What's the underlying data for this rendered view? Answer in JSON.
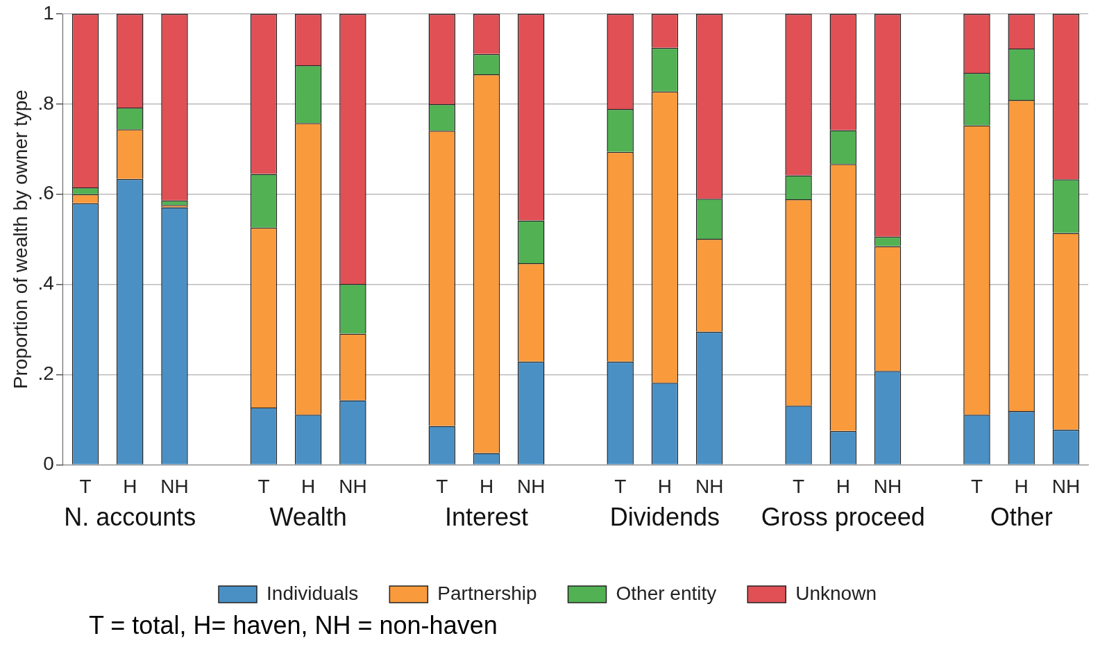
{
  "chart_data": {
    "type": "bar",
    "stacked": true,
    "ylabel": "Proportion of wealth by owner type",
    "categories": [
      "T",
      "H",
      "NH",
      null,
      "T",
      "H",
      "NH",
      null,
      "T",
      "H",
      "NH",
      null,
      "T",
      "H",
      "NH",
      null,
      "T",
      "H",
      "NH",
      null,
      "T",
      "H",
      "NH"
    ],
    "series": [
      {
        "name": "Individuals",
        "color": "#4a90c4",
        "values": [
          0.58,
          0.634,
          0.571,
          null,
          0.127,
          0.111,
          0.143,
          null,
          0.086,
          0.026,
          0.229,
          null,
          0.229,
          0.182,
          0.295,
          null,
          0.131,
          0.075,
          0.208,
          null,
          0.111,
          0.119,
          0.078
        ]
      },
      {
        "name": "Partnership",
        "color": "#f99a3c",
        "values": [
          0.02,
          0.11,
          0.005,
          null,
          0.399,
          0.647,
          0.148,
          null,
          0.655,
          0.84,
          0.218,
          null,
          0.465,
          0.646,
          0.206,
          null,
          0.458,
          0.592,
          0.277,
          null,
          0.642,
          0.69,
          0.436
        ]
      },
      {
        "name": "Other entity",
        "color": "#52b153",
        "values": [
          0.015,
          0.048,
          0.01,
          null,
          0.119,
          0.128,
          0.11,
          null,
          0.059,
          0.045,
          0.095,
          null,
          0.095,
          0.097,
          0.089,
          null,
          0.053,
          0.075,
          0.021,
          null,
          0.116,
          0.114,
          0.119
        ]
      },
      {
        "name": "Unknown",
        "color": "#e05055",
        "values": [
          0.385,
          0.208,
          0.414,
          null,
          0.355,
          0.114,
          0.599,
          null,
          0.2,
          0.089,
          0.458,
          null,
          0.211,
          0.075,
          0.41,
          null,
          0.358,
          0.258,
          0.494,
          null,
          0.131,
          0.077,
          0.367
        ]
      }
    ],
    "ylim": [
      0,
      1
    ],
    "yticks": [
      0,
      {
        "value": 0.2,
        "label": ".2"
      },
      {
        "value": 0.4,
        "label": ".4"
      },
      {
        "value": 0.6,
        "label": ".6"
      },
      {
        "value": 0.8,
        "label": ".8"
      },
      1
    ],
    "grid": "y",
    "legend": "bottom",
    "annotations": [
      "N. accounts",
      "Wealth",
      "Interest",
      "Dividends",
      "Gross proceed",
      "Other",
      "T = total,  H= haven,  NH = non-haven"
    ]
  }
}
